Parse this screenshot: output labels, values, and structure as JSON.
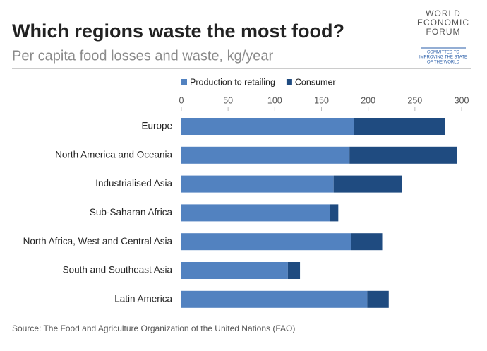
{
  "chart_data": {
    "type": "stacked-barh",
    "title": "Which regions waste the most food?",
    "subtitle": "Per capita food losses and waste, kg/year",
    "source": "Source: The Food and Agriculture Organization of the United Nations (FAO)",
    "categories": [
      "Europe",
      "North America and Oceania",
      "Industrialised Asia",
      "Sub-Saharan Africa",
      "North Africa, West and Central Asia",
      "South and Southeast Asia",
      "Latin America"
    ],
    "series": [
      {
        "name": "Production to retailing",
        "color": "#5282c0",
        "values": [
          185,
          180,
          163,
          159,
          182,
          114,
          199
        ]
      },
      {
        "name": "Consumer",
        "color": "#1f4b80",
        "values": [
          97,
          115,
          73,
          9,
          33,
          13,
          23
        ]
      }
    ],
    "xlim": [
      0,
      300
    ],
    "xticks": [
      0,
      50,
      100,
      150,
      200,
      250,
      300
    ],
    "grid": false
  },
  "logo": {
    "name": [
      "WORLD",
      "ECONOMIC",
      "FORUM"
    ],
    "tagline": [
      "COMMITTED TO",
      "IMPROVING THE STATE",
      "OF THE WORLD"
    ]
  }
}
